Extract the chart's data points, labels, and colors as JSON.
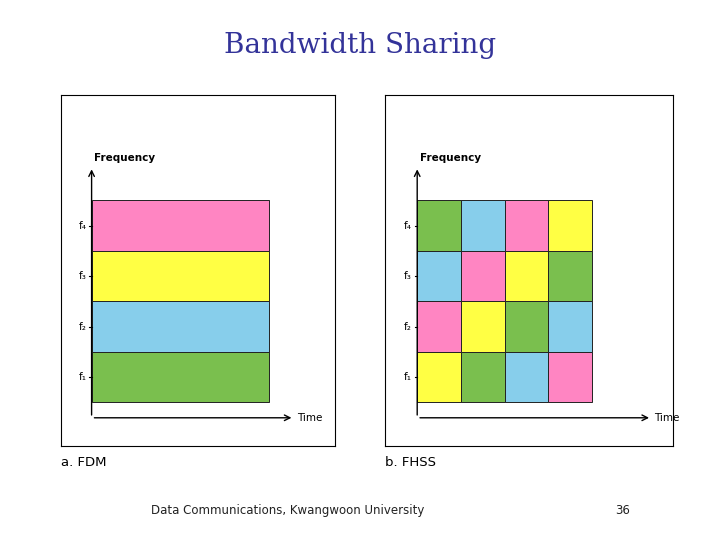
{
  "title": "Bandwidth Sharing",
  "title_color": "#333399",
  "title_fontsize": 20,
  "footer_text": "Data Communications, Kwangwoon University",
  "footer_page": "36",
  "colors": {
    "pink": "#FF85C2",
    "yellow": "#FFFF44",
    "cyan": "#87CEEB",
    "green": "#7ABF4E"
  },
  "fdm_bars": [
    "green",
    "cyan",
    "yellow",
    "pink"
  ],
  "fhss_grid": [
    [
      "yellow",
      "green",
      "cyan",
      "pink"
    ],
    [
      "pink",
      "yellow",
      "green",
      "cyan"
    ],
    [
      "cyan",
      "pink",
      "yellow",
      "green"
    ],
    [
      "green",
      "cyan",
      "pink",
      "yellow"
    ]
  ],
  "freq_labels": [
    "f₁",
    "f₂",
    "f₃",
    "f₄"
  ],
  "xlabel": "Time",
  "ylabel": "Frequency",
  "left_label": "a. FDM",
  "right_label": "b. FHSS",
  "background": "#FFFFFF"
}
